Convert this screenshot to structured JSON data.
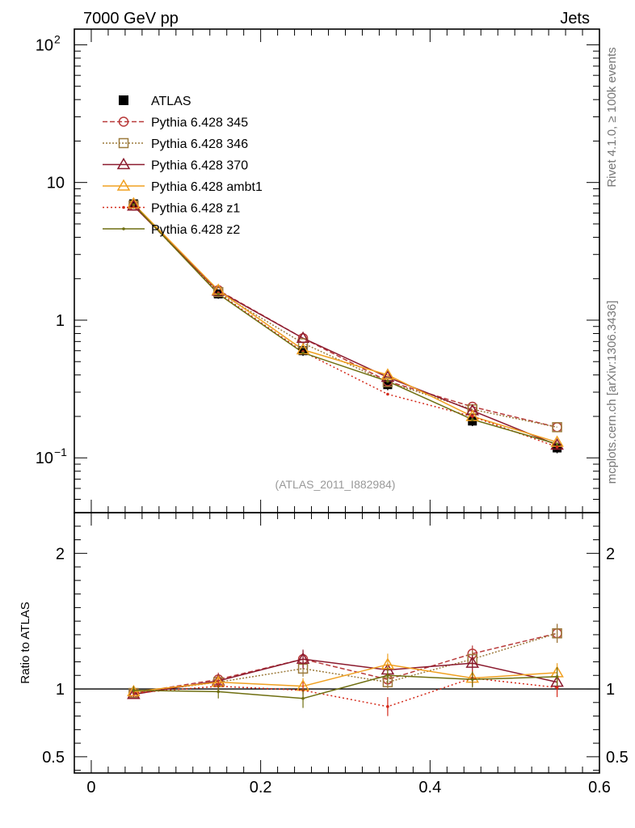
{
  "header": {
    "left": "7000 GeV pp",
    "right": "Jets"
  },
  "side_labels": {
    "rivet": "Rivet 4.1.0, ≥ 100k events",
    "mcplots": "mcplots.cern.ch [arXiv:1306.3436]"
  },
  "analysis_tag": "(ATLAS_2011_I882984)",
  "chart_data": {
    "type": "line",
    "xlim": [
      -0.02,
      0.6
    ],
    "x_ticks": [
      "0",
      "0.2",
      "0.4",
      "0.6"
    ],
    "x_tick_values": [
      0,
      0.2,
      0.4,
      0.6
    ],
    "x": [
      0.05,
      0.15,
      0.25,
      0.35,
      0.45,
      0.55
    ],
    "main": {
      "yscale": "log",
      "ylim": [
        0.04,
        130
      ],
      "y_tick_values": [
        0.1,
        1,
        10,
        100
      ],
      "y_tick_labels": {
        "v0": "10",
        "e0": "−1",
        "v1": "1",
        "v2": "10",
        "v3": "10",
        "e3": "2"
      }
    },
    "ratio": {
      "ylabel": "Ratio to ATLAS",
      "ylim": [
        0.38,
        2.3
      ],
      "y_tick_values": [
        0.5,
        1,
        2
      ],
      "y_tick_labels": [
        "0.5",
        "1",
        "2"
      ]
    },
    "data_series": {
      "name": "ATLAS",
      "values": [
        7.0,
        1.55,
        0.6,
        0.34,
        0.185,
        0.118
      ],
      "errors": [
        0.55,
        0.12,
        0.05,
        0.03,
        0.015,
        0.01
      ]
    },
    "series": [
      {
        "name": "Pythia 6.428 345",
        "color": "#b83a3a",
        "marker": "circle",
        "dash": "6,3",
        "values": [
          6.8,
          1.65,
          0.74,
          0.36,
          0.235,
          0.167
        ],
        "ratio": [
          0.97,
          1.07,
          1.22,
          1.07,
          1.26,
          1.41
        ],
        "ratio_err": [
          0.02,
          0.05,
          0.06,
          0.05,
          0.06,
          0.07
        ]
      },
      {
        "name": "Pythia 6.428 346",
        "color": "#9c7a3c",
        "marker": "square",
        "dash": "2,2",
        "values": [
          6.8,
          1.6,
          0.68,
          0.355,
          0.225,
          0.167
        ],
        "ratio": [
          0.97,
          1.05,
          1.15,
          1.05,
          1.22,
          1.41
        ],
        "ratio_err": [
          0.02,
          0.05,
          0.06,
          0.05,
          0.06,
          0.07
        ]
      },
      {
        "name": "Pythia 6.428 370",
        "color": "#8b1a2e",
        "marker": "triangle",
        "dash": "",
        "values": [
          6.75,
          1.63,
          0.74,
          0.385,
          0.22,
          0.124
        ],
        "ratio": [
          0.96,
          1.06,
          1.22,
          1.14,
          1.19,
          1.05
        ],
        "ratio_err": [
          0.02,
          0.05,
          0.07,
          0.05,
          0.06,
          0.06
        ]
      },
      {
        "name": "Pythia 6.428 ambt1",
        "color": "#f0a020",
        "marker": "triangle",
        "dash": "",
        "values": [
          7.0,
          1.65,
          0.61,
          0.4,
          0.2,
          0.13
        ],
        "ratio": [
          0.98,
          1.05,
          1.02,
          1.18,
          1.08,
          1.12
        ],
        "ratio_err": [
          0.03,
          0.05,
          0.06,
          0.08,
          0.06,
          0.07
        ]
      },
      {
        "name": "Pythia 6.428 z1",
        "color": "#d42a1a",
        "marker": "dot",
        "dash": "2,3",
        "values": [
          6.8,
          1.58,
          0.59,
          0.29,
          0.2,
          0.12
        ],
        "ratio": [
          0.97,
          1.02,
          0.99,
          0.87,
          1.08,
          1.01
        ],
        "ratio_err": [
          0.02,
          0.05,
          0.06,
          0.07,
          0.06,
          0.07
        ]
      },
      {
        "name": "Pythia 6.428 z2",
        "color": "#6e6e10",
        "marker": "dot",
        "dash": "",
        "values": [
          6.9,
          1.55,
          0.58,
          0.36,
          0.19,
          0.126
        ],
        "ratio": [
          0.99,
          0.98,
          0.93,
          1.1,
          1.07,
          1.09
        ],
        "ratio_err": [
          0.03,
          0.05,
          0.07,
          0.06,
          0.06,
          0.07
        ]
      }
    ]
  }
}
